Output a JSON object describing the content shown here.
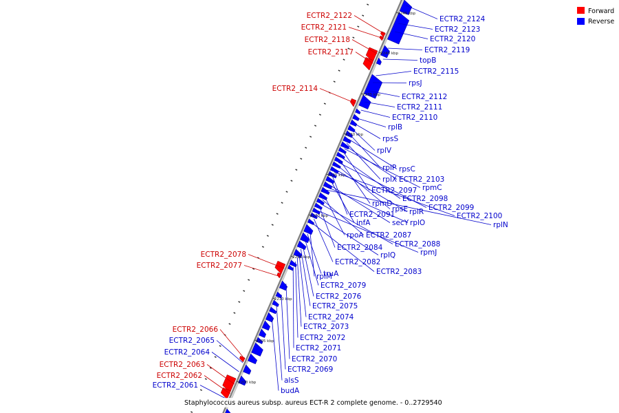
{
  "legend": [
    {
      "label": "Forward",
      "color": "#ff0000"
    },
    {
      "label": "Reverse",
      "color": "#0000ff"
    }
  ],
  "caption": "Staphylococcus aureus subsp. aureus ECT-R 2 complete genome. - 0..2729540",
  "colors": {
    "forward": "#ff0000",
    "reverse": "#0000ff",
    "backbone": "#808080",
    "forward_label": "#cc0000",
    "reverse_label": "#0000cc"
  },
  "ticks": [
    "2245 kbp",
    "2240 kbp",
    "2235 kbp",
    "2230 kbp",
    "2225 kbp",
    "2220 kbp",
    "2215 kbp",
    "2210 kbp",
    "2205 kbp",
    "2200 kbp"
  ],
  "forward_labels": [
    "ECTR2_2122",
    "ECTR2_2121",
    "ECTR2_2118",
    "ECTR2_2117",
    "ECTR2_2114",
    "ECTR2_2078",
    "ECTR2_2077",
    "ECTR2_2066",
    "ECTR2_2063",
    "ECTR2_2062"
  ],
  "reverse_labels": [
    "ECTR2_2124",
    "ECTR2_2123",
    "ECTR2_2120",
    "ECTR2_2119",
    "topB",
    "ECTR2_2115",
    "rpsJ",
    "ECTR2_2112",
    "ECTR2_2111",
    "ECTR2_2110",
    "rplB",
    "rpsS",
    "rplV",
    "rplP",
    "rpsC",
    "rplX",
    "ECTR2_2103",
    "rpmC",
    "ECTR2_2097",
    "ECTR2_2098",
    "rpmD",
    "ECTR2_2099",
    "rpsE",
    "rplR",
    "ECTR2_2100",
    "ECTR2_2091",
    "infA",
    "secY",
    "rplO",
    "rplN",
    "rpoA",
    "ECTR2_2087",
    "ECTR2_2088",
    "ECTR2_2084",
    "rpmJ",
    "rplQ",
    "ECTR2_2082",
    "ECTR2_2083",
    "rplM",
    "truA",
    "ECTR2_2079",
    "ECTR2_2076",
    "ECTR2_2075",
    "ECTR2_2074",
    "ECTR2_2073",
    "ECTR2_2072",
    "ECTR2_2071",
    "ECTR2_2070",
    "ECTR2_2069",
    "alsS",
    "budA"
  ],
  "left_reverse_labels": [
    "ECTR2_2065",
    "ECTR2_2064",
    "ECTR2_2061"
  ]
}
